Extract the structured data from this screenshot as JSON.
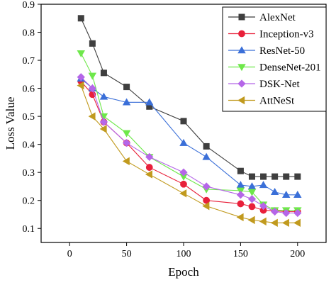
{
  "chart_data": {
    "type": "line",
    "title": "",
    "xlabel": "Epoch",
    "ylabel": "Loss Value",
    "xlim": [
      -25,
      225
    ],
    "ylim": [
      0.05,
      0.9
    ],
    "x_ticks": [
      0,
      50,
      100,
      150,
      200
    ],
    "y_ticks": [
      0.1,
      0.2,
      0.3,
      0.4,
      0.5,
      0.6,
      0.7,
      0.8,
      0.9
    ],
    "grid": false,
    "legend_position": "top-right",
    "x": [
      10,
      20,
      30,
      50,
      70,
      100,
      120,
      150,
      160,
      170,
      180,
      190,
      200
    ],
    "series": [
      {
        "name": "AlexNet",
        "color": "#3f3f3f",
        "marker": "square",
        "values": [
          0.85,
          0.76,
          0.655,
          0.605,
          0.535,
          0.483,
          0.393,
          0.305,
          0.285,
          0.285,
          0.285,
          0.285,
          0.285
        ]
      },
      {
        "name": "Inception-v3",
        "color": "#e8203a",
        "marker": "circle",
        "values": [
          0.625,
          0.578,
          0.48,
          0.405,
          0.318,
          0.258,
          0.2,
          0.188,
          0.178,
          0.165,
          0.163,
          0.16,
          0.16
        ]
      },
      {
        "name": "ResNet-50",
        "color": "#3a6fd8",
        "marker": "triangle-up",
        "values": [
          0.635,
          0.6,
          0.57,
          0.55,
          0.55,
          0.405,
          0.355,
          0.255,
          0.25,
          0.255,
          0.23,
          0.22,
          0.22
        ]
      },
      {
        "name": "DenseNet-201",
        "color": "#6ee84a",
        "marker": "triangle-down",
        "values": [
          0.725,
          0.645,
          0.5,
          0.44,
          0.355,
          0.285,
          0.24,
          0.235,
          0.23,
          0.185,
          0.165,
          0.165,
          0.165
        ]
      },
      {
        "name": "DSK-Net",
        "color": "#b566e8",
        "marker": "diamond",
        "values": [
          0.64,
          0.6,
          0.48,
          0.405,
          0.355,
          0.3,
          0.25,
          0.22,
          0.205,
          0.18,
          0.16,
          0.155,
          0.155
        ]
      },
      {
        "name": "AttNeSt",
        "color": "#c19a1e",
        "marker": "triangle-left",
        "values": [
          0.61,
          0.5,
          0.455,
          0.34,
          0.293,
          0.225,
          0.18,
          0.14,
          0.13,
          0.125,
          0.12,
          0.12,
          0.12
        ]
      }
    ]
  }
}
